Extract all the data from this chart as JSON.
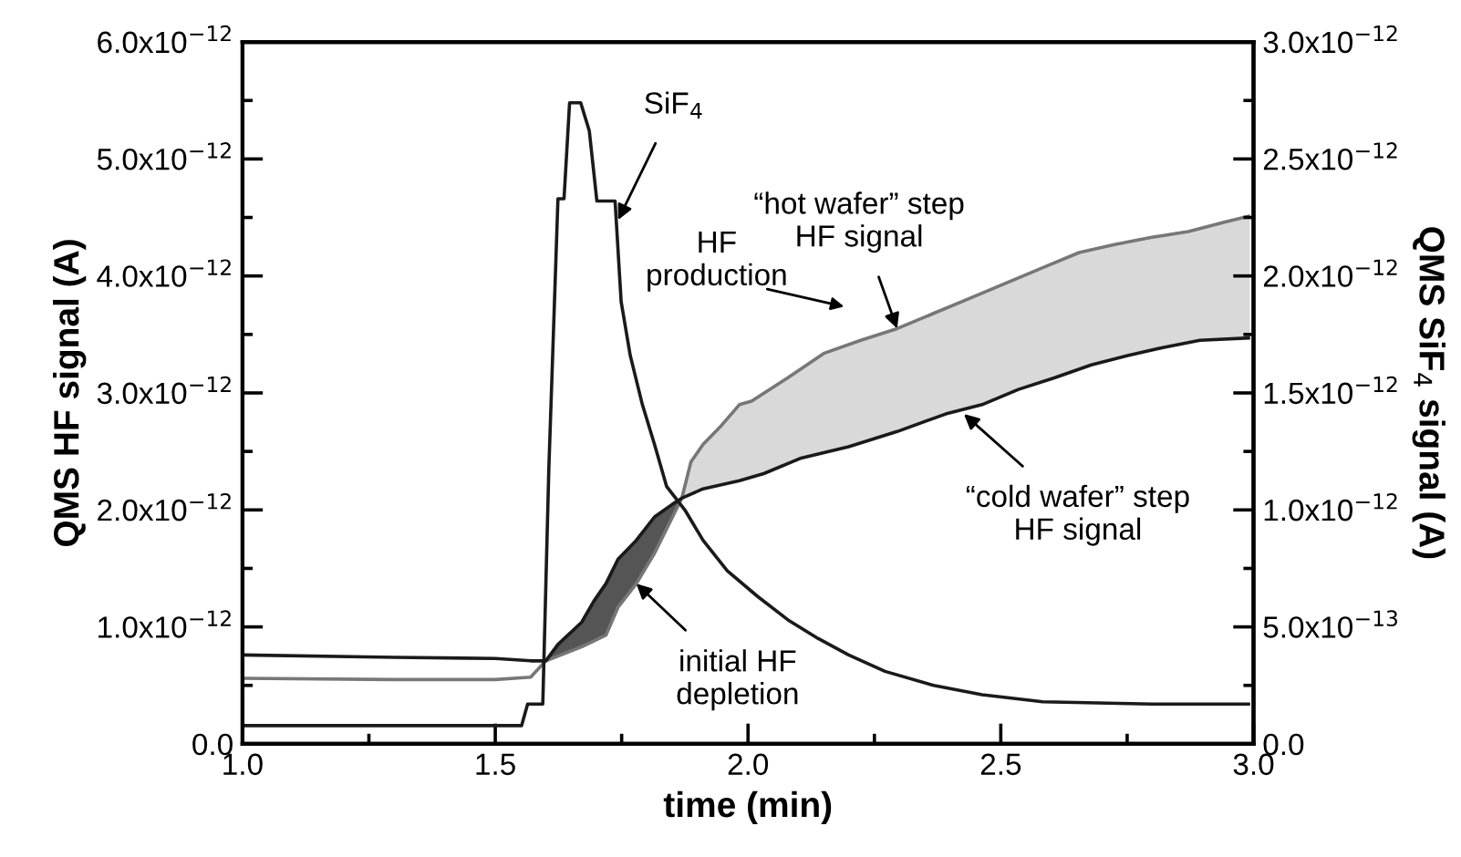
{
  "chart_data": {
    "type": "line",
    "xlabel": "time (min)",
    "ylabel": "QMS HF signal (A)",
    "y2label": "QMS SiF$_{4}$ signal (A)",
    "xlim": [
      1.0,
      3.0
    ],
    "ylim": [
      0,
      6e-12
    ],
    "y2lim": [
      0,
      3e-12
    ],
    "xticks": [
      {
        "value": 1,
        "label": "1.0"
      },
      {
        "value": 1.25,
        "label": null
      },
      1.5,
      {
        "value": 1.75,
        "label": null
      },
      {
        "value": 2,
        "label": "2.0"
      },
      {
        "value": 2.25,
        "label": null
      },
      2.5,
      {
        "value": 2.75,
        "label": null
      },
      {
        "value": 3,
        "label": "3.0"
      }
    ],
    "yticks": [
      {
        "value": 0,
        "label": "0.0"
      },
      {
        "value": 5e-13,
        "label": null
      },
      {
        "value": 1e-12,
        "label": "1.0x10$^{−12}$"
      },
      {
        "value": 1.5e-12,
        "label": null
      },
      {
        "value": 2e-12,
        "label": "2.0x10$^{−12}$"
      },
      {
        "value": 2.5e-12,
        "label": null
      },
      {
        "value": 3e-12,
        "label": "3.0x10$^{−12}$"
      },
      {
        "value": 3.5e-12,
        "label": null
      },
      {
        "value": 4e-12,
        "label": "4.0x10$^{−12}$"
      },
      {
        "value": 4.5e-12,
        "label": null
      },
      {
        "value": 5e-12,
        "label": "5.0x10$^{−12}$"
      },
      {
        "value": 5.5e-12,
        "label": null
      },
      {
        "value": 6e-12,
        "label": "6.0x10$^{−12}$"
      }
    ],
    "y2ticks": [
      {
        "value": 0,
        "label": "0.0"
      },
      {
        "value": 2.5e-13,
        "label": null
      },
      {
        "value": 5e-13,
        "label": "5.0x10$^{−13}$"
      },
      {
        "value": 7.5e-13,
        "label": null
      },
      {
        "value": 1e-12,
        "label": "1.0x10$^{−12}$"
      },
      {
        "value": 1.25e-12,
        "label": null
      },
      {
        "value": 1.5e-12,
        "label": "1.5x10$^{−12}$"
      },
      {
        "value": 1.75e-12,
        "label": null
      },
      {
        "value": 2e-12,
        "label": "2.0x10$^{−12}$"
      },
      {
        "value": 2.25e-12,
        "label": null
      },
      {
        "value": 2.5e-12,
        "label": "2.5x10$^{−12}$"
      },
      {
        "value": 2.75e-12,
        "label": null
      },
      {
        "value": 3e-12,
        "label": "3.0x10$^{−12}$"
      }
    ],
    "grid": false,
    "legend": false,
    "marker": "none",
    "line_style": "solid",
    "series": [
      {
        "color": "#777777",
        "x": [
          1.0,
          1.3,
          1.5,
          1.57,
          1.6,
          1.671,
          1.719,
          1.743,
          1.779,
          1.815,
          1.839,
          1.869,
          1.887,
          1.911,
          1.947,
          1.983,
          2.007,
          2.079,
          2.151,
          2.223,
          2.295,
          2.367,
          2.439,
          2.511,
          2.583,
          2.655,
          2.727,
          2.799,
          2.871,
          2.942,
          2.99
        ],
        "values": [
          5.6e-13,
          5.5e-13,
          5.5e-13,
          5.7e-13,
          7.1e-13,
          8.3e-13,
          9.3e-13,
          1.17e-12,
          1.37e-12,
          1.63e-12,
          1.84e-12,
          2.1e-12,
          2.41e-12,
          2.56e-12,
          2.72e-12,
          2.9e-12,
          2.93e-12,
          3.13e-12,
          3.34e-12,
          3.45e-12,
          3.55e-12,
          3.68e-12,
          3.81e-12,
          3.94e-12,
          4.07e-12,
          4.2e-12,
          4.27e-12,
          4.33e-12,
          4.38e-12,
          4.46e-12,
          4.51e-12
        ]
      },
      {
        "color": "#1a1a1a",
        "x": [
          1.0,
          1.3,
          1.5,
          1.57,
          1.6,
          1.624,
          1.671,
          1.695,
          1.719,
          1.743,
          1.779,
          1.815,
          1.851,
          1.869,
          1.911,
          1.983,
          2.031,
          2.103,
          2.199,
          2.295,
          2.391,
          2.463,
          2.535,
          2.607,
          2.679,
          2.751,
          2.823,
          2.894,
          2.99
        ],
        "values": [
          7.6e-13,
          7.4e-13,
          7.3e-13,
          7.1e-13,
          7.1e-13,
          8.5e-13,
          1.04e-12,
          1.22e-12,
          1.37e-12,
          1.58e-12,
          1.74e-12,
          1.94e-12,
          2.05e-12,
          2.1e-12,
          2.18e-12,
          2.25e-12,
          2.31e-12,
          2.44e-12,
          2.54e-12,
          2.67e-12,
          2.82e-12,
          2.9e-12,
          3.03e-12,
          3.13e-12,
          3.24e-12,
          3.32e-12,
          3.39e-12,
          3.45e-12,
          3.47e-12
        ]
      },
      {
        "color": "#1a1a1a",
        "axis": "y2",
        "x": [
          1.0,
          1.5,
          1.552,
          1.564,
          1.594,
          1.606,
          1.624,
          1.636,
          1.647,
          1.669,
          1.686,
          1.701,
          1.737,
          1.749,
          1.767,
          1.791,
          1.815,
          1.839,
          1.875,
          1.911,
          1.959,
          2.019,
          2.079,
          2.139,
          2.199,
          2.271,
          2.367,
          2.463,
          2.583,
          2.799,
          2.99
        ],
        "values": [
          7.8e-14,
          7.8e-14,
          7.8e-14,
          1.7e-13,
          1.7e-13,
          1.18e-12,
          2.33e-12,
          2.33e-12,
          2.74e-12,
          2.74e-12,
          2.62e-12,
          2.32e-12,
          2.32e-12,
          1.89e-12,
          1.66e-12,
          1.45e-12,
          1.28e-12,
          1.1e-12,
          1e-12,
          8.7e-13,
          7.4e-13,
          6.3e-13,
          5.3e-13,
          4.5e-13,
          3.8e-13,
          3.1e-13,
          2.5e-13,
          2.1e-13,
          1.8e-13,
          1.7e-13,
          1.7e-13
        ]
      }
    ],
    "annotations": [
      {
        "text": "SiF$_{4}$",
        "x": 1.743,
        "y": 4.48e-12
      },
      "HF\nproduction",
      {
        "text": "“hot wafer” step\nHF signal",
        "x": 2.295,
        "y": 3.55e-12
      },
      {
        "text": "“cold wafer” step\nHF signal",
        "x": 2.427,
        "y": 2.82e-12
      },
      {
        "text": "initial HF\ndepletion",
        "x": 1.779,
        "y": 1.37e-12
      }
    ]
  }
}
